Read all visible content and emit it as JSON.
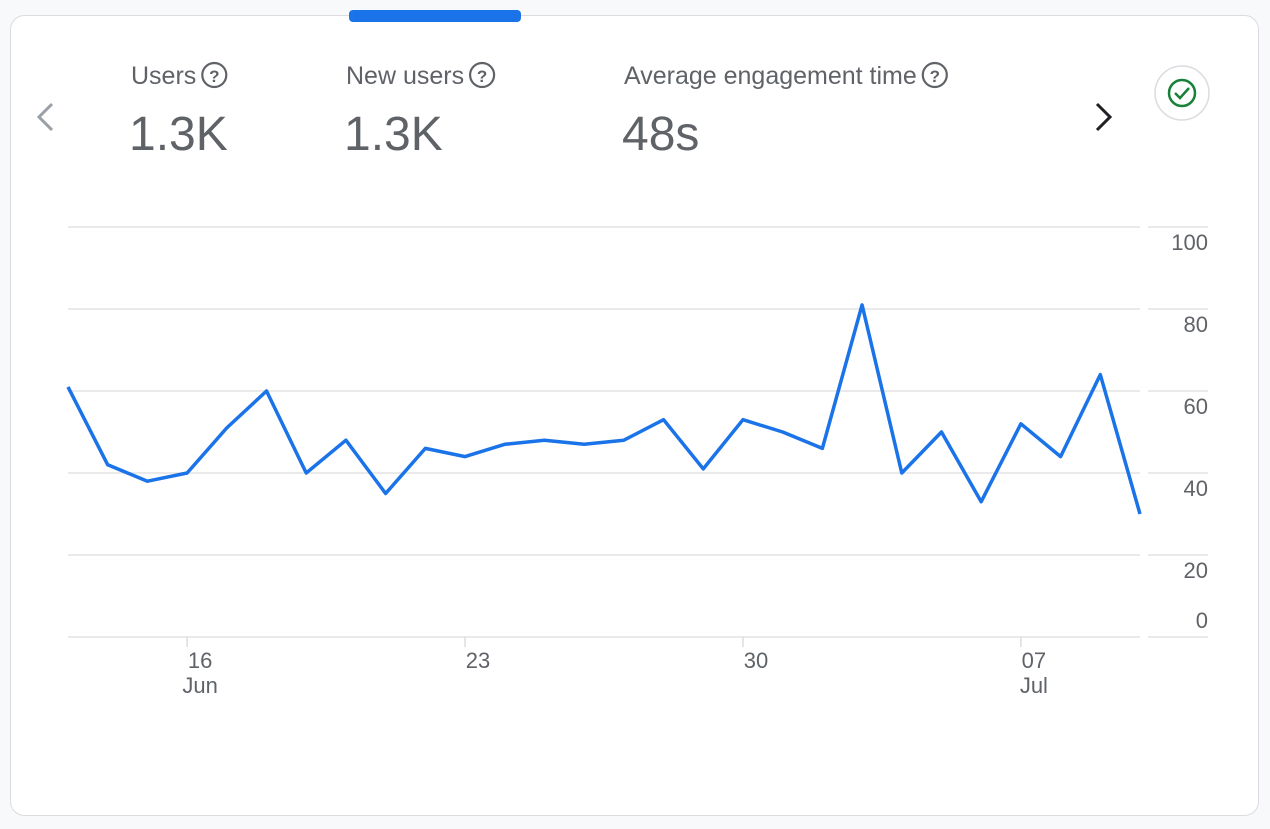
{
  "metrics": [
    {
      "label": "Users",
      "value": "1.3K"
    },
    {
      "label": "New users",
      "value": "1.3K"
    },
    {
      "label": "Average engagement time",
      "value": "48s"
    }
  ],
  "chart_data": {
    "type": "line",
    "categories": [
      null,
      null,
      null,
      "16\nJun",
      null,
      null,
      null,
      null,
      null,
      null,
      "23",
      null,
      null,
      null,
      null,
      null,
      null,
      "30",
      null,
      null,
      null,
      null,
      null,
      null,
      "07\nJul",
      null,
      null,
      null
    ],
    "series": [
      {
        "name": "New users",
        "color": "#1a73e8",
        "values": [
          61,
          42,
          38,
          40,
          51,
          60,
          40,
          48,
          35,
          46,
          44,
          47,
          48,
          47,
          48,
          53,
          41,
          53,
          50,
          46,
          81,
          40,
          50,
          33,
          52,
          44,
          64,
          30
        ]
      }
    ],
    "ylim": [
      0,
      100
    ],
    "yticks": [
      0,
      20,
      40,
      60,
      80,
      100
    ],
    "grid": true
  }
}
